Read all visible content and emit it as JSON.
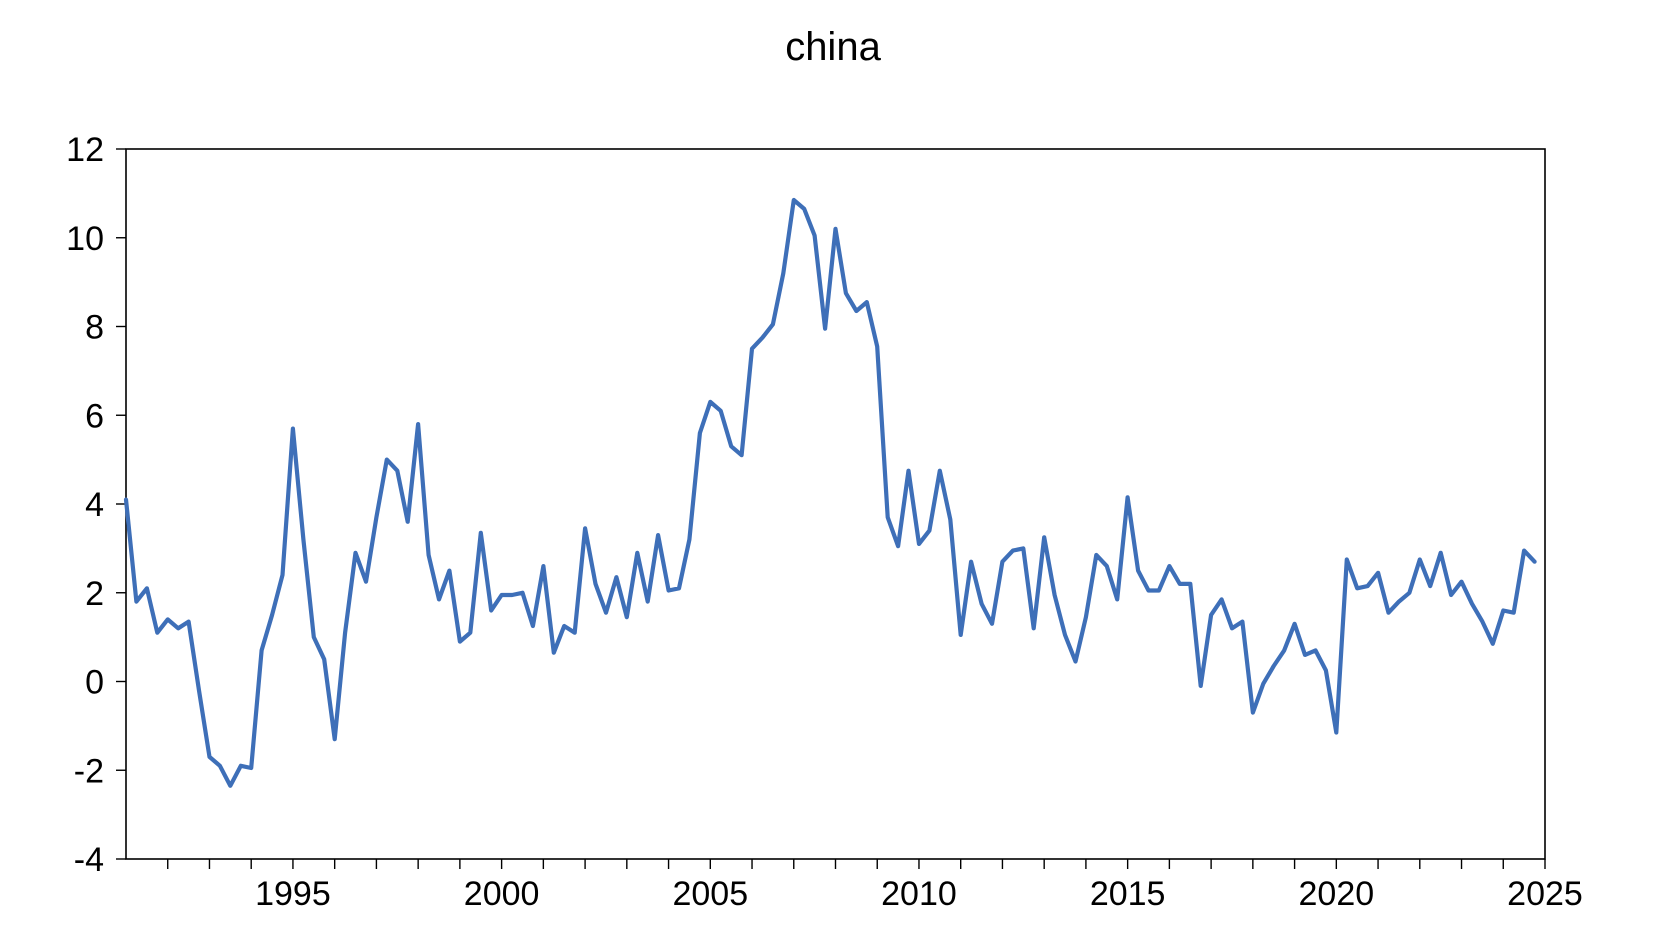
{
  "chart_data": {
    "type": "line",
    "title": "china",
    "xlabel": "",
    "ylabel": "",
    "xlim": [
      1991.0,
      2025.0
    ],
    "ylim": [
      -4,
      12
    ],
    "yticks": [
      -4,
      -2,
      0,
      2,
      4,
      6,
      8,
      10,
      12
    ],
    "xticks": [
      1995,
      2000,
      2005,
      2010,
      2015,
      2020,
      2025
    ],
    "minor_xticks_per_year": true,
    "grid": false,
    "legend": "none",
    "line_color": "#3e6fb8",
    "series": [
      {
        "x": [
          1991.0,
          1991.25,
          1991.5,
          1991.75,
          1992.0,
          1992.25,
          1992.5,
          1992.75,
          1993.0,
          1993.25,
          1993.5,
          1993.75,
          1994.0,
          1994.25,
          1994.5,
          1994.75,
          1995.0,
          1995.25,
          1995.5,
          1995.75,
          1996.0,
          1996.25,
          1996.5,
          1996.75,
          1997.0,
          1997.25,
          1997.5,
          1997.75,
          1998.0,
          1998.25,
          1998.5,
          1998.75,
          1999.0,
          1999.25,
          1999.5,
          1999.75,
          2000.0,
          2000.25,
          2000.5,
          2000.75,
          2001.0,
          2001.25,
          2001.5,
          2001.75,
          2002.0,
          2002.25,
          2002.5,
          2002.75,
          2003.0,
          2003.25,
          2003.5,
          2003.75,
          2004.0,
          2004.25,
          2004.5,
          2004.75,
          2005.0,
          2005.25,
          2005.5,
          2005.75,
          2006.0,
          2006.25,
          2006.5,
          2006.75,
          2007.0,
          2007.25,
          2007.5,
          2007.75,
          2008.0,
          2008.25,
          2008.5,
          2008.75,
          2009.0,
          2009.25,
          2009.5,
          2009.75,
          2010.0,
          2010.25,
          2010.5,
          2010.75,
          2011.0,
          2011.25,
          2011.5,
          2011.75,
          2012.0,
          2012.25,
          2012.5,
          2012.75,
          2013.0,
          2013.25,
          2013.5,
          2013.75,
          2014.0,
          2014.25,
          2014.5,
          2014.75,
          2015.0,
          2015.25,
          2015.5,
          2015.75,
          2016.0,
          2016.25,
          2016.5,
          2016.75,
          2017.0,
          2017.25,
          2017.5,
          2017.75,
          2018.0,
          2018.25,
          2018.5,
          2018.75,
          2019.0,
          2019.25,
          2019.5,
          2019.75,
          2020.0,
          2020.25,
          2020.5,
          2020.75,
          2021.0,
          2021.25,
          2021.5,
          2021.75,
          2022.0,
          2022.25,
          2022.5,
          2022.75,
          2023.0,
          2023.25,
          2023.5,
          2023.75,
          2024.0,
          2024.25,
          2024.5,
          2024.75
        ],
        "values": [
          4.1,
          1.8,
          2.1,
          1.1,
          1.4,
          1.2,
          1.35,
          -0.2,
          -1.7,
          -1.9,
          -2.35,
          -1.9,
          -1.95,
          0.7,
          1.5,
          2.4,
          5.7,
          3.2,
          1.0,
          0.5,
          -1.3,
          1.1,
          2.9,
          2.25,
          3.7,
          5.0,
          4.75,
          3.6,
          5.8,
          2.85,
          1.85,
          2.5,
          0.9,
          1.1,
          3.35,
          1.6,
          1.95,
          1.95,
          2.0,
          1.25,
          2.6,
          0.65,
          1.25,
          1.1,
          3.45,
          2.2,
          1.55,
          2.35,
          1.45,
          2.9,
          1.8,
          3.3,
          2.05,
          2.1,
          3.2,
          5.6,
          6.3,
          6.1,
          5.3,
          5.1,
          7.5,
          7.75,
          8.05,
          9.2,
          10.85,
          10.65,
          10.05,
          7.95,
          10.2,
          8.75,
          8.35,
          8.55,
          7.55,
          3.7,
          3.05,
          4.75,
          3.1,
          3.4,
          4.75,
          3.65,
          1.05,
          2.7,
          1.75,
          1.3,
          2.7,
          2.95,
          3.0,
          1.2,
          3.25,
          1.95,
          1.05,
          0.45,
          1.45,
          2.85,
          2.6,
          1.85,
          4.15,
          2.5,
          2.05,
          2.05,
          2.6,
          2.2,
          2.2,
          -0.1,
          1.5,
          1.85,
          1.2,
          1.35,
          -0.7,
          -0.05,
          0.35,
          0.7,
          1.3,
          0.6,
          0.7,
          0.25,
          -1.15,
          2.75,
          2.1,
          2.15,
          2.45,
          1.55,
          1.8,
          2.0,
          2.75,
          2.15,
          2.9,
          1.95,
          2.25,
          1.75,
          1.35,
          0.85,
          1.6,
          1.55,
          2.95,
          2.7
        ]
      }
    ]
  }
}
